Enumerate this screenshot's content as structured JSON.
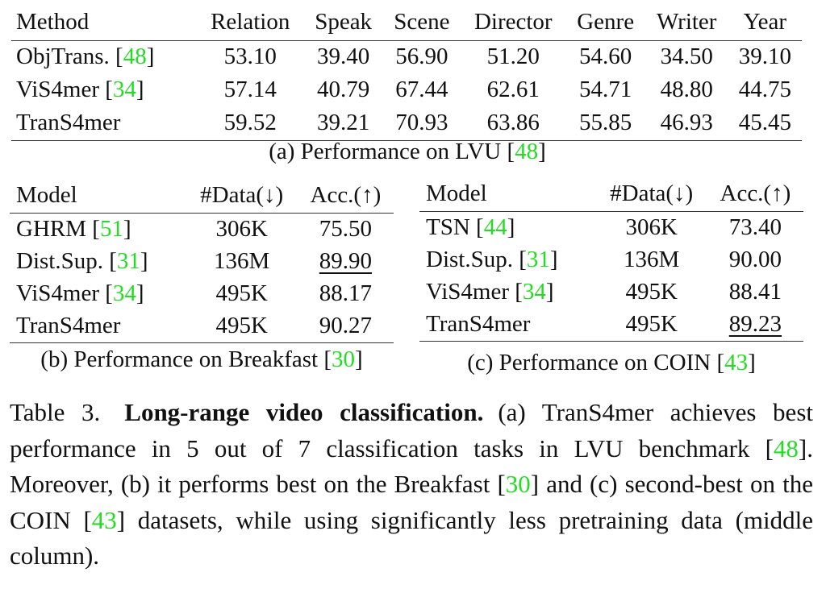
{
  "table_a": {
    "columns": [
      "Method",
      "Relation",
      "Speak",
      "Scene",
      "Director",
      "Genre",
      "Writer",
      "Year"
    ],
    "rows": [
      {
        "name": "ObjTrans.",
        "cite": "48",
        "values": [
          "53.10",
          "39.40",
          "56.90",
          "51.20",
          "54.60",
          "34.50",
          "39.10"
        ]
      },
      {
        "name": "ViS4mer",
        "cite": "34",
        "values": [
          "57.14",
          "40.79",
          "67.44",
          "62.61",
          "54.71",
          "48.80",
          "44.75"
        ]
      },
      {
        "name": "TranS4mer",
        "cite": "",
        "values": [
          "59.52",
          "39.21",
          "70.93",
          "63.86",
          "55.85",
          "46.93",
          "45.45"
        ]
      }
    ],
    "caption_text": "(a) Performance on LVU",
    "caption_cite": "48"
  },
  "table_b": {
    "columns": [
      "Model",
      "#Data(↓)",
      "Acc.(↑)"
    ],
    "rows": [
      {
        "name": "GHRM",
        "cite": "51",
        "data": "306K",
        "acc": "75.50"
      },
      {
        "name": "Dist.Sup.",
        "cite": "31",
        "data": "136M",
        "acc": "89.90"
      },
      {
        "name": "ViS4mer",
        "cite": "34",
        "data": "495K",
        "acc": "88.17"
      },
      {
        "name": "TranS4mer",
        "cite": "",
        "data": "495K",
        "acc": "90.27"
      }
    ],
    "caption_text": "(b) Performance on Breakfast",
    "caption_cite": "30"
  },
  "table_c": {
    "columns": [
      "Model",
      "#Data(↓)",
      "Acc.(↑)"
    ],
    "rows": [
      {
        "name": "TSN",
        "cite": "44",
        "data": "306K",
        "acc": "73.40"
      },
      {
        "name": "Dist.Sup.",
        "cite": "31",
        "data": "136M",
        "acc": "90.00"
      },
      {
        "name": "ViS4mer",
        "cite": "34",
        "data": "495K",
        "acc": "88.41"
      },
      {
        "name": "TranS4mer",
        "cite": "",
        "data": "495K",
        "acc": "89.23"
      }
    ],
    "caption_text": "(c) Performance on COIN",
    "caption_cite": "43"
  },
  "caption": {
    "label": "Table 3.",
    "title": "Long-range video classification.",
    "t1": "(a) TranS4mer achieves best performance in 5 out of 7 classification tasks in LVU benchmark [",
    "c1": "48",
    "t2": "]. Moreover, (b) it performs best on the Breakfast [",
    "c2": "30",
    "t3": "] and (c) second-best on the COIN [",
    "c3": "43",
    "t4": "] datasets, while using significantly less pretraining data (middle column)."
  },
  "colors": {
    "citation": "#22dd22",
    "text": "#111111"
  }
}
